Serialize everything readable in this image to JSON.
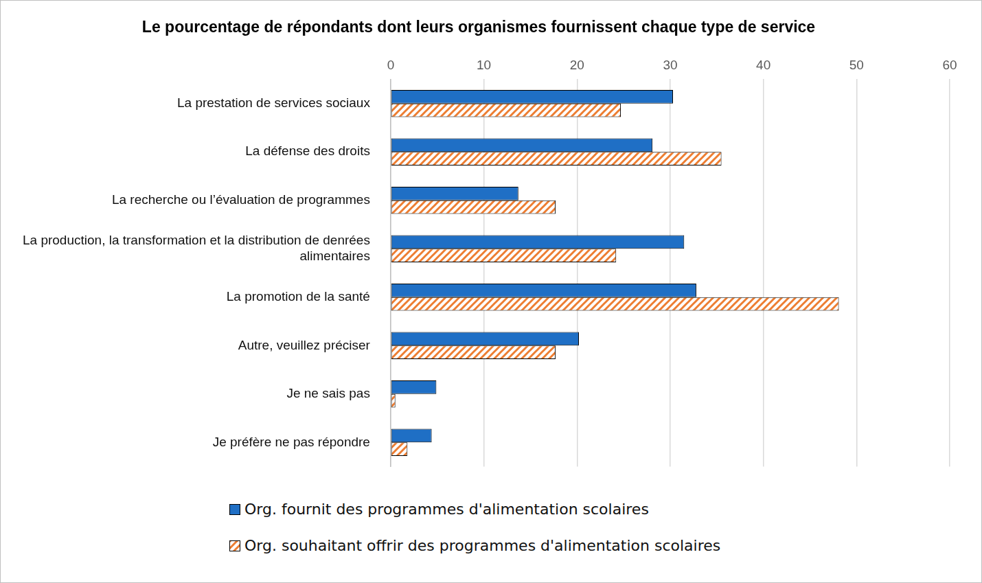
{
  "chart_data": {
    "type": "bar",
    "orientation": "horizontal",
    "title": "Le pourcentage de répondants dont leurs organismes fournissent chaque type de service",
    "categories": [
      "La prestation de services sociaux",
      "La défense des droits",
      "La recherche ou l’évaluation de programmes",
      "La production, la transformation et la distribution de denrées alimentaires",
      "La promotion de la santé",
      "Autre, veuillez préciser",
      "Je ne sais pas",
      "Je préfère ne pas répondre"
    ],
    "series": [
      {
        "name": "Org. fournit des programmes d'alimentation scolaires",
        "color": "#1f6fc5",
        "values": [
          30.3,
          28.1,
          13.7,
          31.5,
          32.8,
          20.2,
          4.9,
          4.4
        ]
      },
      {
        "name": "Org. souhaitant offrir des programmes d'alimentation scolaires",
        "color": "#ed7d31",
        "values": [
          24.7,
          35.5,
          17.7,
          24.2,
          48.1,
          17.7,
          0.5,
          1.8
        ]
      }
    ],
    "xlim": [
      0,
      60
    ],
    "xticks": [
      0,
      10,
      20,
      30,
      40,
      50,
      60
    ],
    "grid": true,
    "legend": "bottom"
  }
}
